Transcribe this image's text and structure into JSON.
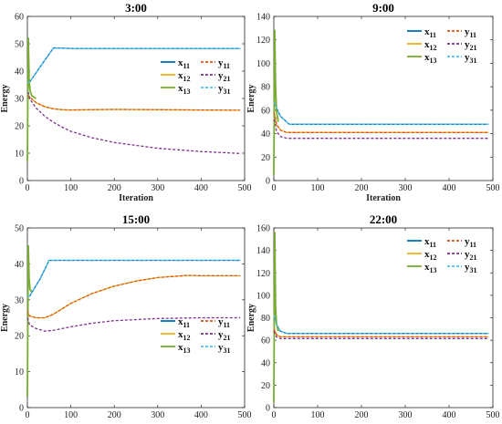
{
  "series_style": {
    "x11": {
      "color": "#0072BD",
      "dash": false
    },
    "x12": {
      "color": "#EDB120",
      "dash": false
    },
    "x13": {
      "color": "#77AC30",
      "dash": false
    },
    "y11": {
      "color": "#D95319",
      "dash": true
    },
    "y21": {
      "color": "#7E2F8E",
      "dash": true
    },
    "y31": {
      "color": "#4DBEEE",
      "dash": true
    }
  },
  "chart_data": [
    {
      "type": "line",
      "title": "3:00",
      "xlabel": "Iteration",
      "ylabel": "Energy",
      "xlim": [
        0,
        500
      ],
      "ylim": [
        0,
        60
      ],
      "xticks": [
        0,
        100,
        200,
        300,
        400,
        500
      ],
      "yticks": [
        0,
        10,
        20,
        30,
        40,
        50,
        60
      ],
      "legend_position": "right-middle",
      "legend": [
        [
          "x",
          "11"
        ],
        [
          "y",
          "11"
        ],
        [
          "x",
          "12"
        ],
        [
          "y",
          "21"
        ],
        [
          "x",
          "13"
        ],
        [
          "y",
          "31"
        ]
      ],
      "series": [
        {
          "name": "x11",
          "x": [
            0,
            3,
            5,
            60,
            100,
            200,
            300,
            400,
            490
          ],
          "y": [
            36,
            36,
            36,
            48.5,
            48.3,
            48.3,
            48.3,
            48.3,
            48.3
          ]
        },
        {
          "name": "y31",
          "x": [
            0,
            3,
            5,
            60,
            100,
            200,
            300,
            400,
            490
          ],
          "y": [
            36,
            36,
            36,
            48.5,
            48.3,
            48.3,
            48.3,
            48.3,
            48.3
          ]
        },
        {
          "name": "x12",
          "x": [
            0,
            3,
            5,
            20,
            40,
            60,
            80,
            100,
            150,
            200,
            300,
            400,
            490
          ],
          "y": [
            31,
            31,
            30.5,
            28.5,
            27,
            26.2,
            25.9,
            25.8,
            25.9,
            26.0,
            25.9,
            25.8,
            25.7
          ]
        },
        {
          "name": "y11",
          "x": [
            0,
            3,
            5,
            20,
            40,
            60,
            80,
            100,
            150,
            200,
            300,
            400,
            490
          ],
          "y": [
            31,
            31,
            30.5,
            28.5,
            27,
            26.2,
            25.9,
            25.8,
            25.9,
            26.0,
            25.9,
            25.8,
            25.7
          ]
        },
        {
          "name": "y21",
          "x": [
            0,
            3,
            5,
            20,
            40,
            60,
            80,
            100,
            150,
            200,
            300,
            400,
            490
          ],
          "y": [
            32,
            32,
            30,
            26.5,
            23.5,
            21.3,
            19.5,
            18,
            15.6,
            13.9,
            11.8,
            10.6,
            9.9
          ]
        },
        {
          "name": "x13",
          "x": [
            0,
            2,
            4,
            6,
            10,
            20
          ],
          "y": [
            7,
            52,
            37,
            33,
            31,
            30
          ],
          "spike": true
        }
      ]
    },
    {
      "type": "line",
      "title": "9:00",
      "xlabel": "Iteration",
      "ylabel": "Energy",
      "xlim": [
        0,
        500
      ],
      "ylim": [
        0,
        140
      ],
      "xticks": [
        0,
        100,
        200,
        300,
        400,
        500
      ],
      "yticks": [
        0,
        20,
        40,
        60,
        80,
        100,
        120,
        140
      ],
      "legend_position": "top-right",
      "legend": [
        [
          "x",
          "11"
        ],
        [
          "y",
          "11"
        ],
        [
          "x",
          "12"
        ],
        [
          "y",
          "21"
        ],
        [
          "x",
          "13"
        ],
        [
          "y",
          "31"
        ]
      ],
      "series": [
        {
          "name": "x11",
          "x": [
            0,
            3,
            6,
            15,
            35,
            100,
            200,
            300,
            400,
            490
          ],
          "y": [
            66,
            66,
            62,
            55,
            48,
            48,
            48,
            48,
            48,
            48
          ]
        },
        {
          "name": "y31",
          "x": [
            0,
            3,
            6,
            15,
            35,
            100,
            200,
            300,
            400,
            490
          ],
          "y": [
            66,
            66,
            62,
            55,
            48,
            48,
            48,
            48,
            48,
            48
          ]
        },
        {
          "name": "x12",
          "x": [
            0,
            3,
            6,
            15,
            30,
            100,
            200,
            300,
            400,
            490
          ],
          "y": [
            58,
            55,
            48,
            43,
            41,
            41,
            41,
            41,
            41,
            41
          ]
        },
        {
          "name": "y11",
          "x": [
            0,
            3,
            6,
            15,
            30,
            100,
            200,
            300,
            400,
            490
          ],
          "y": [
            58,
            55,
            48,
            43,
            41,
            41,
            41,
            41,
            41,
            41
          ]
        },
        {
          "name": "y21",
          "x": [
            0,
            3,
            6,
            15,
            30,
            100,
            200,
            300,
            400,
            490
          ],
          "y": [
            52,
            50,
            42,
            37.5,
            36,
            36,
            36,
            36,
            36,
            36
          ]
        },
        {
          "name": "x13",
          "x": [
            0,
            2,
            4,
            6,
            10
          ],
          "y": [
            5,
            128,
            80,
            60,
            50
          ],
          "spike": true
        }
      ]
    },
    {
      "type": "line",
      "title": "15:00",
      "xlabel": "Iteration",
      "ylabel": "Energy",
      "xlim": [
        0,
        500
      ],
      "ylim": [
        0,
        50
      ],
      "xticks": [
        0,
        100,
        200,
        300,
        400,
        500
      ],
      "yticks": [
        0,
        10,
        20,
        30,
        40,
        50
      ],
      "legend_position": "bottom-right",
      "legend": [
        [
          "x",
          "11"
        ],
        [
          "y",
          "11"
        ],
        [
          "x",
          "12"
        ],
        [
          "y",
          "21"
        ],
        [
          "x",
          "13"
        ],
        [
          "y",
          "31"
        ]
      ],
      "series": [
        {
          "name": "x11",
          "x": [
            0,
            3,
            5,
            30,
            50,
            100,
            200,
            300,
            400,
            490
          ],
          "y": [
            31,
            31,
            31,
            36,
            41,
            41,
            41,
            41,
            41,
            41
          ]
        },
        {
          "name": "y31",
          "x": [
            0,
            3,
            5,
            30,
            50,
            100,
            200,
            300,
            400,
            490
          ],
          "y": [
            31,
            31,
            31,
            36,
            41,
            41,
            41,
            41,
            41,
            41
          ]
        },
        {
          "name": "x12",
          "x": [
            0,
            3,
            5,
            20,
            40,
            60,
            100,
            150,
            200,
            250,
            300,
            370,
            400,
            490
          ],
          "y": [
            27,
            26,
            25.5,
            25,
            25,
            26,
            29,
            31.8,
            33.8,
            35.2,
            36.2,
            36.8,
            36.7,
            36.7
          ]
        },
        {
          "name": "y11",
          "x": [
            0,
            3,
            5,
            20,
            40,
            60,
            100,
            150,
            200,
            250,
            300,
            370,
            400,
            490
          ],
          "y": [
            27,
            26,
            25.5,
            25,
            25,
            26,
            29,
            31.8,
            33.8,
            35.2,
            36.2,
            36.8,
            36.7,
            36.7
          ]
        },
        {
          "name": "y21",
          "x": [
            0,
            3,
            5,
            20,
            40,
            60,
            100,
            150,
            200,
            300,
            400,
            490
          ],
          "y": [
            25,
            24,
            23,
            22,
            21.3,
            21.5,
            22.5,
            23.5,
            24.2,
            24.8,
            25,
            25
          ]
        },
        {
          "name": "x13",
          "x": [
            0,
            2,
            4,
            6,
            10
          ],
          "y": [
            3,
            45,
            36,
            33,
            32
          ],
          "spike": true
        }
      ]
    },
    {
      "type": "line",
      "title": "22:00",
      "xlabel": "Iteration",
      "ylabel": "Energy",
      "xlim": [
        0,
        500
      ],
      "ylim": [
        0,
        160
      ],
      "xticks": [
        0,
        100,
        200,
        300,
        400,
        500
      ],
      "yticks": [
        0,
        20,
        40,
        60,
        80,
        100,
        120,
        140,
        160
      ],
      "legend_position": "top-right",
      "legend": [
        [
          "x",
          "11"
        ],
        [
          "y",
          "11"
        ],
        [
          "x",
          "12"
        ],
        [
          "y",
          "21"
        ],
        [
          "x",
          "13"
        ],
        [
          "y",
          "31"
        ]
      ],
      "series": [
        {
          "name": "x11",
          "x": [
            0,
            3,
            6,
            15,
            30,
            100,
            200,
            300,
            400,
            490
          ],
          "y": [
            82,
            80,
            74,
            68,
            66,
            66,
            66,
            66,
            66,
            66
          ]
        },
        {
          "name": "y31",
          "x": [
            0,
            3,
            6,
            15,
            30,
            100,
            200,
            300,
            400,
            490
          ],
          "y": [
            82,
            80,
            74,
            68,
            66,
            66,
            66,
            66,
            66,
            66
          ]
        },
        {
          "name": "x12",
          "x": [
            0,
            3,
            6,
            15,
            30,
            100,
            200,
            300,
            400,
            490
          ],
          "y": [
            70,
            68,
            65,
            63,
            63,
            63,
            63,
            63,
            63,
            63
          ]
        },
        {
          "name": "y11",
          "x": [
            0,
            3,
            6,
            15,
            30,
            100,
            200,
            300,
            400,
            490
          ],
          "y": [
            70,
            68,
            65,
            63,
            63,
            63,
            63,
            63,
            63,
            63
          ]
        },
        {
          "name": "y21",
          "x": [
            0,
            3,
            6,
            15,
            30,
            100,
            200,
            300,
            400,
            490
          ],
          "y": [
            68,
            66,
            63,
            61.5,
            61.5,
            61.5,
            61.5,
            61.5,
            61.5,
            61.5
          ]
        },
        {
          "name": "x13",
          "x": [
            0,
            2,
            4,
            6,
            10
          ],
          "y": [
            5,
            156,
            90,
            75,
            68
          ],
          "spike": true
        }
      ]
    }
  ]
}
